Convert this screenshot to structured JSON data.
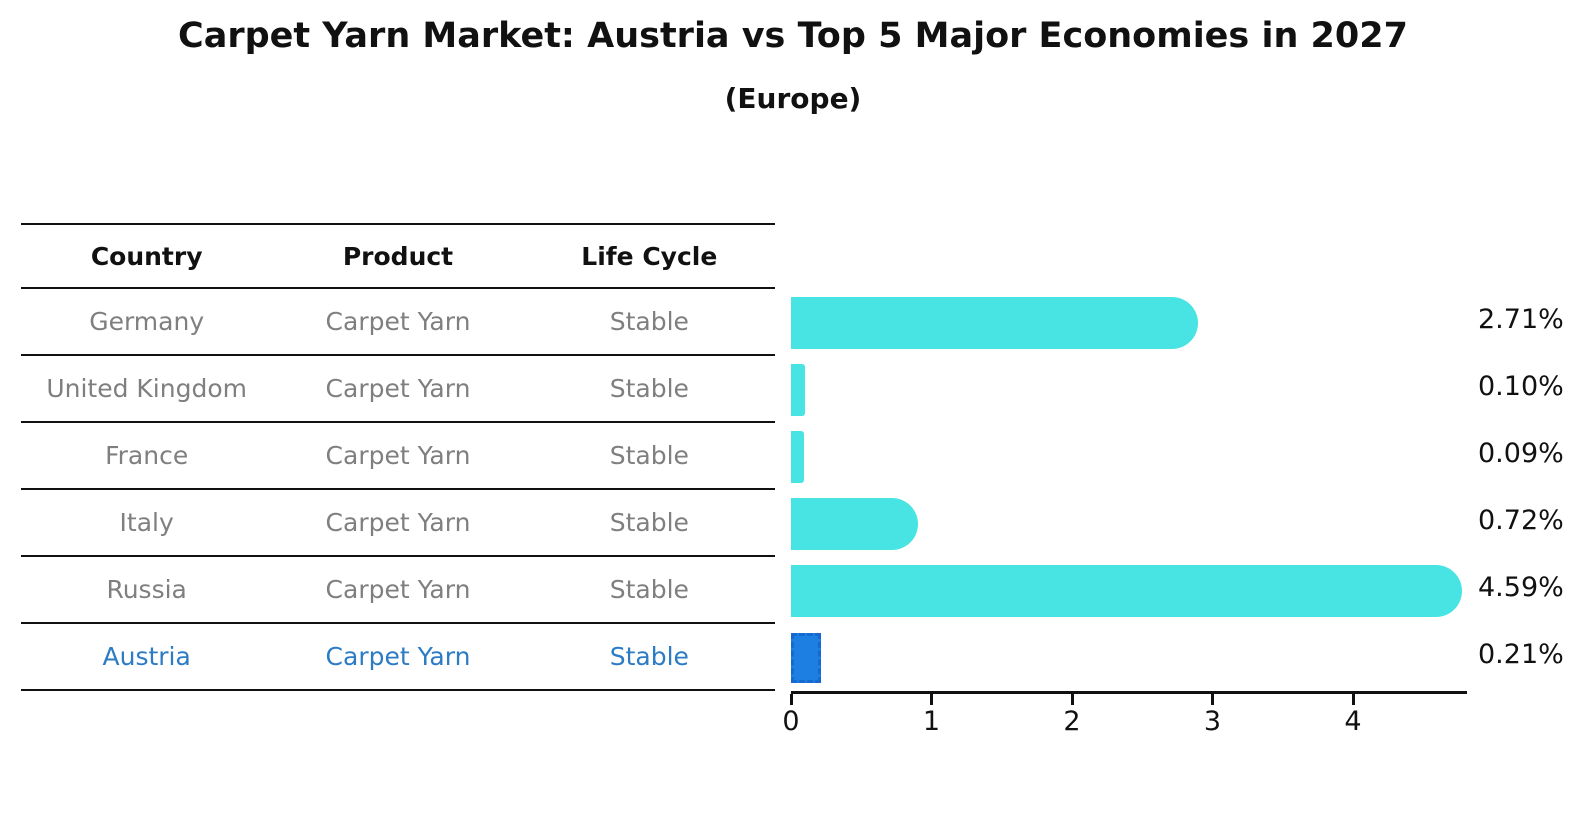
{
  "title": "Carpet Yarn Market: Austria vs Top 5 Major Economies in 2027",
  "subtitle": "(Europe)",
  "table": {
    "headers": [
      "Country",
      "Product",
      "Life Cycle"
    ],
    "rows": [
      {
        "country": "Germany",
        "product": "Carpet Yarn",
        "life_cycle": "Stable",
        "highlight": false
      },
      {
        "country": "United Kingdom",
        "product": "Carpet Yarn",
        "life_cycle": "Stable",
        "highlight": false
      },
      {
        "country": "France",
        "product": "Carpet Yarn",
        "life_cycle": "Stable",
        "highlight": false
      },
      {
        "country": "Italy",
        "product": "Carpet Yarn",
        "life_cycle": "Stable",
        "highlight": false
      },
      {
        "country": "Russia",
        "product": "Carpet Yarn",
        "life_cycle": "Stable",
        "highlight": false
      },
      {
        "country": "Austria",
        "product": "Carpet Yarn",
        "life_cycle": "Stable",
        "highlight": true
      }
    ]
  },
  "chart_data": {
    "type": "bar",
    "orientation": "horizontal",
    "title": "Carpet Yarn Market: Austria vs Top 5 Major Economies in 2027",
    "subtitle": "(Europe)",
    "categories": [
      "Germany",
      "United Kingdom",
      "France",
      "Italy",
      "Russia",
      "Austria"
    ],
    "values": [
      2.71,
      0.1,
      0.09,
      0.72,
      4.59,
      0.21
    ],
    "value_labels": [
      "2.71%",
      "0.10%",
      "0.09%",
      "0.72%",
      "4.59%",
      "0.21%"
    ],
    "xlabel": "",
    "ylabel": "",
    "xlim": [
      0,
      4.8
    ],
    "xticks": [
      "0",
      "1",
      "2",
      "3",
      "4"
    ],
    "grid": false,
    "legend": "none",
    "highlight_index": 5
  },
  "colors": {
    "bar": "#48E3E3",
    "highlight_bar": "#1E7FE3",
    "highlight_border": "#1569CF",
    "highlight_text": "#2c7bc5",
    "row_text": "#7f7f7f",
    "line": "#111111"
  }
}
